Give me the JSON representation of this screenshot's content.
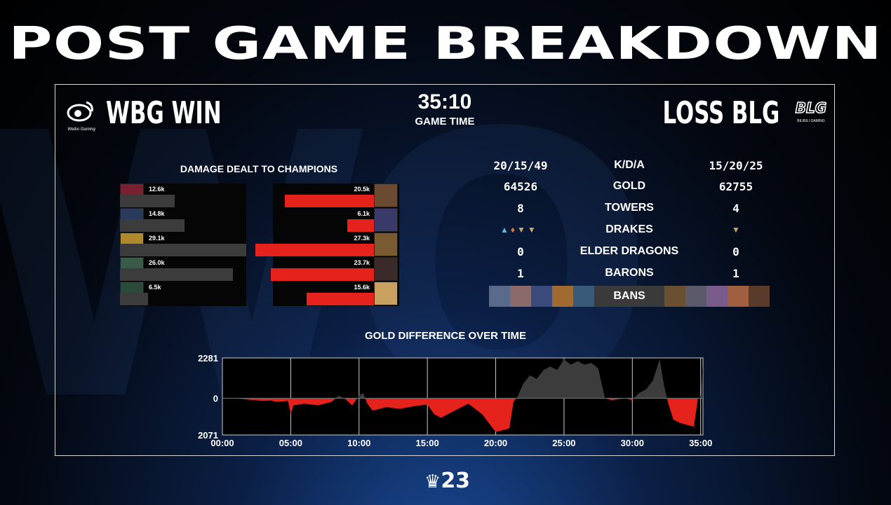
{
  "title": "POST GAME BREAKDOWN",
  "game_time": {
    "value": "35:10",
    "label": "GAME TIME"
  },
  "teams": {
    "left": {
      "name": "WBG WIN",
      "logo_text": "Weibo Gaming",
      "color": "#3c3c3c"
    },
    "right": {
      "name": "LOSS BLG",
      "logo_text": "BILIBILI GAMING",
      "color": "#e5221b"
    }
  },
  "damage": {
    "title": "DAMAGE DEALT TO CHAMPIONS",
    "max_value": 29.1,
    "left": [
      {
        "label": "12.6k",
        "value": 12.6,
        "color": "#7a2030"
      },
      {
        "label": "14.8k",
        "value": 14.8,
        "color": "#2a3a5a"
      },
      {
        "label": "29.1k",
        "value": 29.1,
        "color": "#b08a2a"
      },
      {
        "label": "26.0k",
        "value": 26.0,
        "color": "#3a5a4a"
      },
      {
        "label": "6.5k",
        "value": 6.5,
        "color": "#2a4a3a"
      }
    ],
    "right": [
      {
        "label": "20.5k",
        "value": 20.5,
        "color": "#6a4a30"
      },
      {
        "label": "6.1k",
        "value": 6.1,
        "color": "#3a3a6a"
      },
      {
        "label": "27.3k",
        "value": 27.3,
        "color": "#7a5a30"
      },
      {
        "label": "23.7k",
        "value": 23.7,
        "color": "#3a2a2a"
      },
      {
        "label": "15.6k",
        "value": 15.6,
        "color": "#c8a060"
      }
    ]
  },
  "stats": [
    {
      "label": "K/D/A",
      "left": "20/15/49",
      "right": "15/20/25"
    },
    {
      "label": "GOLD",
      "left": "64526",
      "right": "62755"
    },
    {
      "label": "TOWERS",
      "left": "8",
      "right": "4"
    },
    {
      "label": "DRAKES",
      "left": "",
      "right": ""
    },
    {
      "label": "ELDER DRAGONS",
      "left": "0",
      "right": "0"
    },
    {
      "label": "BARONS",
      "left": "1",
      "right": "1"
    }
  ],
  "drakes": {
    "left_icons": [
      "ocean-drake-icon",
      "infernal-drake-icon",
      "mountain-drake-icon",
      "mountain-drake-icon"
    ],
    "right_icons": [
      "mountain-drake-icon"
    ]
  },
  "bans": {
    "label": "BANS",
    "left": [
      "#5a6a8a",
      "#8a6a6a",
      "#3a4a7a",
      "#a06a30",
      "#3a5a7a"
    ],
    "right": [
      "#6a5030",
      "#5a5a6a",
      "#7a5a8a",
      "#a06040",
      "#5a3a2a"
    ]
  },
  "gold_chart": {
    "title": "GOLD DIFFERENCE OVER TIME",
    "y_top_label": "2281",
    "y_zero_label": "0",
    "y_bottom_label": "2071",
    "x_ticks": [
      "00:00",
      "05:00",
      "10:00",
      "15:00",
      "20:00",
      "25:00",
      "30:00",
      "35:00"
    ],
    "ylim": [
      -2071,
      2281
    ],
    "xlim": [
      0,
      35.17
    ],
    "points": [
      [
        0,
        0
      ],
      [
        1,
        0
      ],
      [
        2,
        -80
      ],
      [
        3,
        -150
      ],
      [
        3.5,
        -120
      ],
      [
        4,
        -200
      ],
      [
        4.8,
        -150
      ],
      [
        5,
        -900
      ],
      [
        5.2,
        -400
      ],
      [
        6,
        -300
      ],
      [
        7,
        -400
      ],
      [
        8,
        -200
      ],
      [
        8.5,
        150
      ],
      [
        9,
        -50
      ],
      [
        9.5,
        -400
      ],
      [
        10,
        150
      ],
      [
        10.3,
        300
      ],
      [
        10.6,
        -300
      ],
      [
        11,
        -700
      ],
      [
        12,
        -500
      ],
      [
        13,
        -600
      ],
      [
        14,
        -450
      ],
      [
        15,
        -350
      ],
      [
        15.5,
        -900
      ],
      [
        16,
        -1100
      ],
      [
        17,
        -700
      ],
      [
        18,
        -300
      ],
      [
        19,
        -900
      ],
      [
        19.5,
        -1400
      ],
      [
        20,
        -1900
      ],
      [
        20.5,
        -1800
      ],
      [
        21,
        -1700
      ],
      [
        21.3,
        -200
      ],
      [
        21.6,
        100
      ],
      [
        22,
        800
      ],
      [
        22.5,
        1300
      ],
      [
        23,
        1100
      ],
      [
        23.5,
        1600
      ],
      [
        24,
        1800
      ],
      [
        24.5,
        1600
      ],
      [
        25,
        2200
      ],
      [
        25.5,
        1900
      ],
      [
        26,
        2100
      ],
      [
        26.5,
        1900
      ],
      [
        27,
        2000
      ],
      [
        27.5,
        1700
      ],
      [
        28,
        0
      ],
      [
        28.5,
        -100
      ],
      [
        29,
        -50
      ],
      [
        29.5,
        0
      ],
      [
        30,
        -100
      ],
      [
        30.5,
        300
      ],
      [
        31,
        500
      ],
      [
        31.5,
        1000
      ],
      [
        32,
        2200
      ],
      [
        32.3,
        800
      ],
      [
        32.6,
        -200
      ],
      [
        33,
        -1200
      ],
      [
        33.5,
        -1400
      ],
      [
        34,
        -1500
      ],
      [
        34.5,
        -1600
      ],
      [
        34.8,
        0
      ],
      [
        35,
        100
      ],
      [
        35.17,
        1800
      ]
    ]
  },
  "footer": {
    "worlds_year": "23"
  }
}
